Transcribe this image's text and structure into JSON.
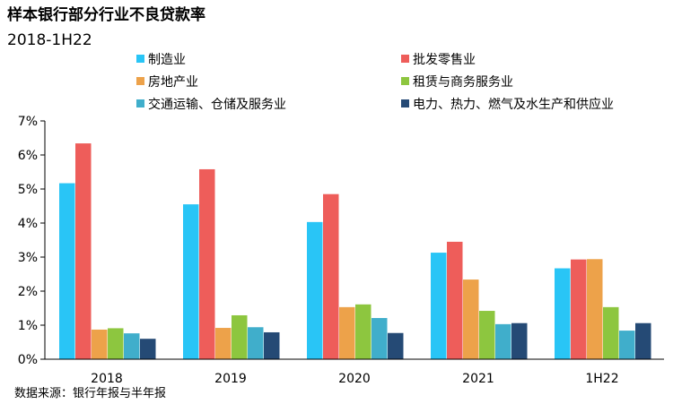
{
  "chart_data": {
    "type": "bar",
    "title": "样本银行部分行业不良贷款率",
    "subtitle": "2018-1H22",
    "categories": [
      "2018",
      "2019",
      "2020",
      "2021",
      "1H22"
    ],
    "y_tick_labels": [
      "0%",
      "1%",
      "2%",
      "3%",
      "4%",
      "5%",
      "6%",
      "7%"
    ],
    "ylim": [
      0,
      7
    ],
    "y_unit": "%",
    "grid": false,
    "legend_position": "top",
    "series": [
      {
        "name": "制造业",
        "color": "#29C5F6",
        "values": [
          5.17,
          4.55,
          4.03,
          3.13,
          2.67
        ]
      },
      {
        "name": "批发零售业",
        "color": "#EE5D5A",
        "values": [
          6.34,
          5.58,
          4.85,
          3.45,
          2.93
        ]
      },
      {
        "name": "房地产业",
        "color": "#EDA24A",
        "values": [
          0.87,
          0.92,
          1.53,
          2.34,
          2.94
        ]
      },
      {
        "name": "租赁与商务服务业",
        "color": "#8DC63F",
        "values": [
          0.91,
          1.29,
          1.61,
          1.42,
          1.53
        ]
      },
      {
        "name": "交通运输、仓储及服务业",
        "color": "#40AECB",
        "values": [
          0.76,
          0.94,
          1.21,
          1.03,
          0.84
        ]
      },
      {
        "name": "电力、热力、燃气及水生产和供应业",
        "color": "#254A75",
        "values": [
          0.6,
          0.79,
          0.77,
          1.06,
          1.06
        ]
      }
    ],
    "source": "数据来源：银行年报与半年报"
  }
}
